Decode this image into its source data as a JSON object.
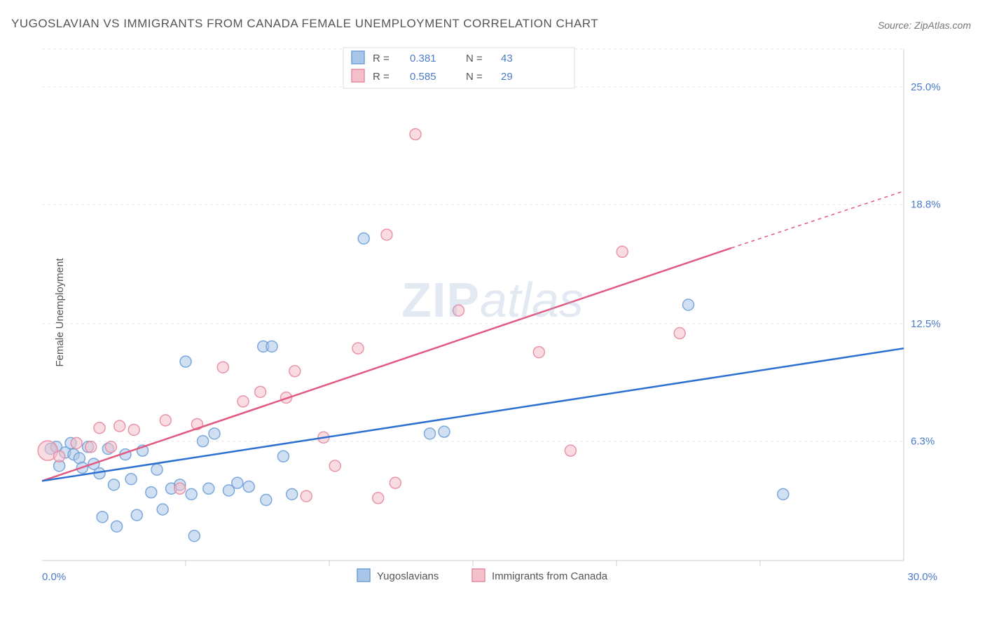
{
  "title": "YUGOSLAVIAN VS IMMIGRANTS FROM CANADA FEMALE UNEMPLOYMENT CORRELATION CHART",
  "source": "Source: ZipAtlas.com",
  "ylabel": "Female Unemployment",
  "watermark_a": "ZIP",
  "watermark_b": "atlas",
  "chart": {
    "type": "scatter",
    "xlim": [
      0,
      30
    ],
    "ylim": [
      0,
      27
    ],
    "xticks": [
      0,
      30
    ],
    "xtick_labels": [
      "0.0%",
      "30.0%"
    ],
    "yticks": [
      6.3,
      12.5,
      18.8,
      25.0
    ],
    "ytick_labels": [
      "6.3%",
      "12.5%",
      "18.8%",
      "25.0%"
    ],
    "xgrid_minor": [
      5,
      10,
      15,
      20,
      25
    ],
    "grid_color": "#e5e5e5",
    "axis_color": "#cccccc",
    "axis_label_color": "#4a7bc8",
    "background_color": "#ffffff",
    "marker_radius": 8,
    "marker_opacity": 0.55,
    "marker_stroke_opacity": 0.9,
    "line_width": 2.5,
    "series": [
      {
        "name": "Yugoslavians",
        "color_fill": "#a9c6e8",
        "color_stroke": "#6fa0d8",
        "line_color": "#2b6fd0",
        "R": "0.381",
        "N": "43",
        "trend": {
          "x1": 0,
          "y1": 4.2,
          "x2": 30,
          "y2": 11.2
        },
        "points": [
          {
            "x": 0.3,
            "y": 5.9
          },
          {
            "x": 0.5,
            "y": 6.0
          },
          {
            "x": 0.6,
            "y": 5.0
          },
          {
            "x": 0.8,
            "y": 5.7
          },
          {
            "x": 1.0,
            "y": 6.2
          },
          {
            "x": 1.1,
            "y": 5.6
          },
          {
            "x": 1.3,
            "y": 5.4
          },
          {
            "x": 1.4,
            "y": 4.9
          },
          {
            "x": 1.6,
            "y": 6.0
          },
          {
            "x": 1.8,
            "y": 5.1
          },
          {
            "x": 2.0,
            "y": 4.6
          },
          {
            "x": 2.1,
            "y": 2.3
          },
          {
            "x": 2.3,
            "y": 5.9
          },
          {
            "x": 2.5,
            "y": 4.0
          },
          {
            "x": 2.6,
            "y": 1.8
          },
          {
            "x": 2.9,
            "y": 5.6
          },
          {
            "x": 3.1,
            "y": 4.3
          },
          {
            "x": 3.3,
            "y": 2.4
          },
          {
            "x": 3.5,
            "y": 5.8
          },
          {
            "x": 3.8,
            "y": 3.6
          },
          {
            "x": 4.0,
            "y": 4.8
          },
          {
            "x": 4.2,
            "y": 2.7
          },
          {
            "x": 4.5,
            "y": 3.8
          },
          {
            "x": 4.8,
            "y": 4.0
          },
          {
            "x": 5.0,
            "y": 10.5
          },
          {
            "x": 5.2,
            "y": 3.5
          },
          {
            "x": 5.3,
            "y": 1.3
          },
          {
            "x": 5.6,
            "y": 6.3
          },
          {
            "x": 5.8,
            "y": 3.8
          },
          {
            "x": 6.0,
            "y": 6.7
          },
          {
            "x": 6.5,
            "y": 3.7
          },
          {
            "x": 6.8,
            "y": 4.1
          },
          {
            "x": 7.2,
            "y": 3.9
          },
          {
            "x": 7.7,
            "y": 11.3
          },
          {
            "x": 7.8,
            "y": 3.2
          },
          {
            "x": 8.0,
            "y": 11.3
          },
          {
            "x": 8.4,
            "y": 5.5
          },
          {
            "x": 8.7,
            "y": 3.5
          },
          {
            "x": 11.2,
            "y": 17.0
          },
          {
            "x": 13.5,
            "y": 6.7
          },
          {
            "x": 22.5,
            "y": 13.5
          },
          {
            "x": 25.8,
            "y": 3.5
          },
          {
            "x": 14.0,
            "y": 6.8
          }
        ]
      },
      {
        "name": "Immigrants from Canada",
        "color_fill": "#f4c0cb",
        "color_stroke": "#e68aa0",
        "line_color": "#e05a82",
        "R": "0.585",
        "N": "29",
        "trend": {
          "x1": 0,
          "y1": 4.2,
          "x2": 24,
          "y2": 16.5
        },
        "trend_dash": {
          "x1": 24,
          "y1": 16.5,
          "x2": 30,
          "y2": 19.5
        },
        "points": [
          {
            "x": 0.2,
            "y": 5.8,
            "r": 14
          },
          {
            "x": 0.6,
            "y": 5.5
          },
          {
            "x": 1.2,
            "y": 6.2
          },
          {
            "x": 1.7,
            "y": 6.0
          },
          {
            "x": 2.0,
            "y": 7.0
          },
          {
            "x": 2.4,
            "y": 6.0
          },
          {
            "x": 2.7,
            "y": 7.1
          },
          {
            "x": 3.2,
            "y": 6.9
          },
          {
            "x": 4.3,
            "y": 7.4
          },
          {
            "x": 4.8,
            "y": 3.8
          },
          {
            "x": 5.4,
            "y": 7.2
          },
          {
            "x": 6.3,
            "y": 10.2
          },
          {
            "x": 7.0,
            "y": 8.4
          },
          {
            "x": 7.6,
            "y": 8.9
          },
          {
            "x": 8.5,
            "y": 8.6
          },
          {
            "x": 8.8,
            "y": 10.0
          },
          {
            "x": 9.2,
            "y": 3.4
          },
          {
            "x": 9.8,
            "y": 6.5
          },
          {
            "x": 10.2,
            "y": 5.0
          },
          {
            "x": 11.0,
            "y": 11.2
          },
          {
            "x": 11.7,
            "y": 3.3
          },
          {
            "x": 12.0,
            "y": 17.2
          },
          {
            "x": 12.3,
            "y": 4.1
          },
          {
            "x": 13.0,
            "y": 22.5
          },
          {
            "x": 14.5,
            "y": 13.2
          },
          {
            "x": 17.3,
            "y": 11.0
          },
          {
            "x": 18.4,
            "y": 5.8
          },
          {
            "x": 20.2,
            "y": 16.3
          },
          {
            "x": 22.2,
            "y": 12.0
          }
        ]
      }
    ],
    "legend_top": {
      "r_label": "R =",
      "n_label": "N ="
    },
    "legend_bottom": [
      {
        "label": "Yugoslavians",
        "fill": "#a9c6e8",
        "stroke": "#6fa0d8"
      },
      {
        "label": "Immigrants from Canada",
        "fill": "#f4c0cb",
        "stroke": "#e68aa0"
      }
    ]
  }
}
